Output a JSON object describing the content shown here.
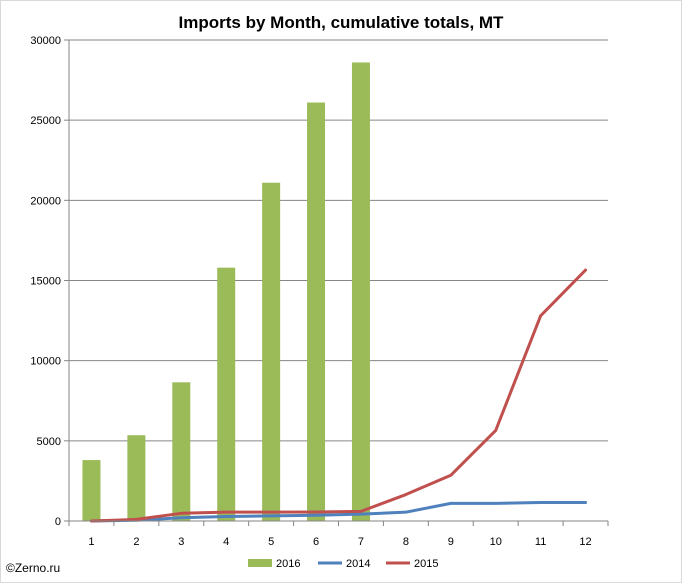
{
  "chart_data": {
    "type": "bar",
    "title": "Imports by Month, cumulative totals, MT",
    "xlabel": "",
    "ylabel": "",
    "categories": [
      "1",
      "2",
      "3",
      "4",
      "5",
      "6",
      "7",
      "8",
      "9",
      "10",
      "11",
      "12"
    ],
    "ylim": [
      0,
      30000
    ],
    "yticks": [
      "0",
      "5000",
      "10000",
      "15000",
      "20000",
      "25000",
      "30000"
    ],
    "grid": true,
    "legend_position": "bottom",
    "series": [
      {
        "name": "2016",
        "type": "bar",
        "color": "#9bbb59",
        "values": [
          3800,
          5350,
          8650,
          15800,
          21100,
          26100,
          28600,
          null,
          null,
          null,
          null,
          null
        ]
      },
      {
        "name": "2014",
        "type": "line",
        "color": "#4f81bd",
        "values": [
          0,
          50,
          200,
          280,
          320,
          360,
          430,
          550,
          1100,
          1100,
          1150,
          1150
        ]
      },
      {
        "name": "2015",
        "type": "line",
        "color": "#c0504d",
        "values": [
          0,
          100,
          480,
          550,
          550,
          560,
          600,
          1650,
          2850,
          5650,
          12800,
          15650
        ]
      }
    ]
  },
  "watermark": "©Zerno.ru"
}
